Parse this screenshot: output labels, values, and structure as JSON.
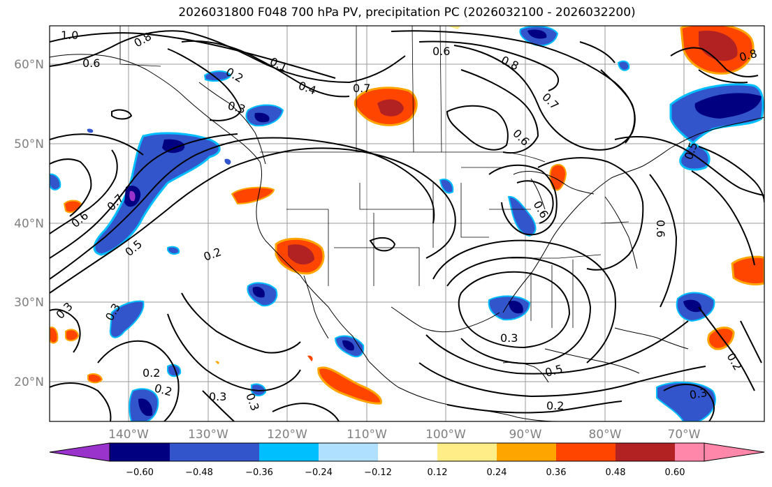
{
  "title": "2026031800 F048 700 hPa PV, precipitation PC (2026032100 - 2026032200)",
  "longitude_labels": [
    "140°W",
    "130°W",
    "120°W",
    "110°W",
    "100°W",
    "90°W",
    "80°W",
    "70°W"
  ],
  "latitude_labels": [
    "60°N",
    "50°N",
    "40°N",
    "30°N",
    "20°N"
  ],
  "colorbar": {
    "tick_labels": [
      "−0.60",
      "−0.48",
      "−0.36",
      "−0.24",
      "−0.12",
      "0.12",
      "0.24",
      "0.36",
      "0.48",
      "0.60"
    ],
    "colors": [
      "#9933cc",
      "#000080",
      "#3355cc",
      "#00bfff",
      "#b0e0ff",
      "#ffffff",
      "#ffee88",
      "#ffa500",
      "#ff4500",
      "#b22222",
      "#ff88aa"
    ]
  },
  "contour_labels": [
    "1.0",
    "0.8",
    "0.6",
    "0.2",
    "0.4",
    "0.3",
    "0.1",
    "0.6",
    "0.8",
    "0.7",
    "0.6",
    "0.7",
    "0.5",
    "0.6",
    "0.7",
    "0.5",
    "0.2",
    "0.6",
    "0.6",
    "0.8",
    "0.3",
    "0.3",
    "0.2",
    "0.2",
    "0.3",
    "0.3",
    "0.3",
    "0.5",
    "0.2",
    "0.3",
    "0.2"
  ]
}
